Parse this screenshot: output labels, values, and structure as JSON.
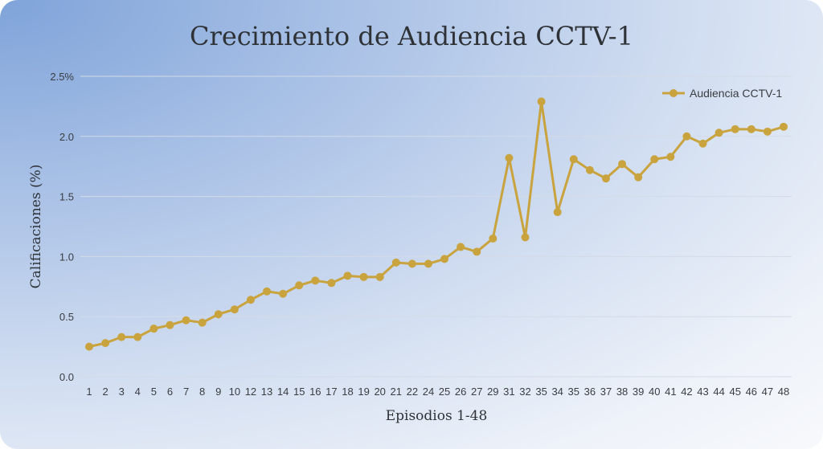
{
  "chart_data": {
    "type": "line",
    "title": "Crecimiento de Audiencia CCTV-1",
    "xlabel": "Episodios 1-48",
    "ylabel": "Calificaciones (%)",
    "ylim": [
      0,
      2.5
    ],
    "y_ticks": [
      "0.0",
      "0.5",
      "1.0",
      "1.5",
      "2.0",
      "2.5%"
    ],
    "grid": true,
    "legend_position": "top-right",
    "colors": {
      "series": "#c9a33e"
    },
    "categories": [
      "1",
      "2",
      "3",
      "4",
      "5",
      "6",
      "7",
      "8",
      "9",
      "10",
      "12",
      "13",
      "14",
      "15",
      "16",
      "17",
      "18",
      "19",
      "20",
      "21",
      "22",
      "24",
      "25",
      "26",
      "27",
      "29",
      "31",
      "32",
      "35",
      "34",
      "35",
      "36",
      "37",
      "38",
      "39",
      "40",
      "41",
      "42",
      "43",
      "44",
      "45",
      "46",
      "47",
      "48"
    ],
    "series": [
      {
        "name": "Audiencia CCTV-1",
        "values": [
          0.25,
          0.28,
          0.33,
          0.33,
          0.4,
          0.43,
          0.47,
          0.45,
          0.52,
          0.56,
          0.64,
          0.71,
          0.69,
          0.76,
          0.8,
          0.78,
          0.84,
          0.83,
          0.83,
          0.95,
          0.94,
          0.94,
          0.98,
          1.08,
          1.04,
          1.15,
          1.82,
          1.16,
          2.29,
          1.37,
          1.81,
          1.72,
          1.65,
          1.77,
          1.66,
          1.81,
          1.83,
          2.0,
          1.94,
          2.03,
          2.06,
          2.06,
          2.04,
          2.08
        ]
      }
    ]
  }
}
